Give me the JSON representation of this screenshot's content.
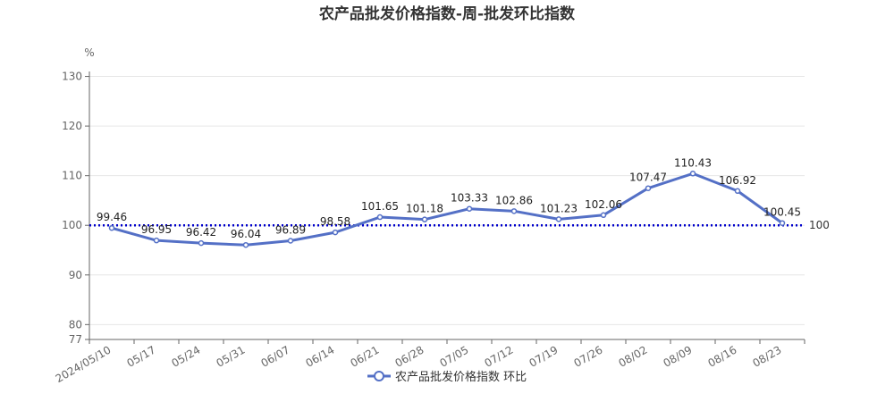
{
  "chart_data": {
    "type": "line",
    "title": "农产品批发价格指数-周-批发环比指数",
    "y_unit": "%",
    "categories": [
      "2024/05/10",
      "05/17",
      "05/24",
      "05/31",
      "06/07",
      "06/14",
      "06/21",
      "06/28",
      "07/05",
      "07/12",
      "07/19",
      "07/26",
      "08/02",
      "08/09",
      "08/16",
      "08/23"
    ],
    "series": [
      {
        "name": "农产品批发价格指数 环比",
        "values": [
          99.46,
          96.95,
          96.42,
          96.04,
          96.89,
          98.58,
          101.65,
          101.18,
          103.33,
          102.86,
          101.23,
          102.06,
          107.47,
          110.43,
          106.92,
          100.45
        ],
        "labels": [
          "99.46",
          "96.95",
          "96.42",
          "96.04",
          "96.89",
          "98.58",
          "101.65",
          "101.18",
          "103.33",
          "102.86",
          "101.23",
          "102.06",
          "107.47",
          "110.43",
          "106.92",
          "100.45"
        ],
        "color": "#5470c6"
      }
    ],
    "ylim": [
      77,
      131
    ],
    "y_ticks": [
      77,
      80,
      90,
      100,
      110,
      120,
      130
    ],
    "y_tick_labels": [
      "77",
      "80",
      "90",
      "100",
      "110",
      "120",
      "130"
    ],
    "reference_line": {
      "value": 100,
      "label": "100",
      "color": "#0000cc",
      "style": "dotted"
    },
    "grid": true,
    "legend_position": "bottom-center"
  }
}
